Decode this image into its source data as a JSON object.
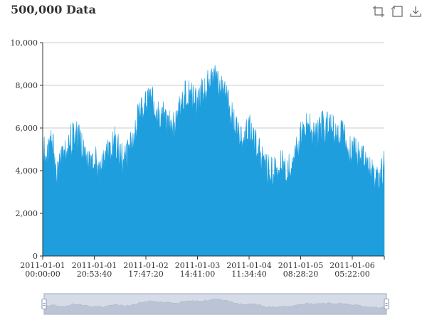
{
  "chart_data": {
    "type": "area",
    "title": "500,000 Data",
    "series": [
      {
        "values": [
          5800,
          5400,
          6100,
          4700,
          5200,
          5600,
          6300,
          6500,
          5900,
          5300,
          4800,
          5200,
          4700,
          5300,
          5800,
          6100,
          5600,
          5100,
          5900,
          6500,
          7300,
          7700,
          8200,
          7900,
          7500,
          7700,
          7100,
          6700,
          7400,
          8000,
          8400,
          8300,
          7900,
          8400,
          8700,
          8900,
          9100,
          8700,
          8300,
          7600,
          6900,
          6200,
          6400,
          6900,
          6100,
          5700,
          5000,
          4800,
          4600,
          4900,
          5200,
          4800,
          5300,
          6000,
          6500,
          6800,
          6600,
          6400,
          6800,
          6900,
          6700,
          6600,
          6400,
          6300,
          5800,
          5700,
          5300,
          5200,
          4800,
          4400,
          4600,
          5100
        ]
      }
    ],
    "y_axis": {
      "min": 0,
      "max": 10000,
      "ticks": [
        "0",
        "2,000",
        "4,000",
        "6,000",
        "8,000",
        "10,000"
      ]
    },
    "x_axis": {
      "ticks": [
        {
          "line1": "2011-01-01",
          "line2": "00:00:00"
        },
        {
          "line1": "2011-01-01",
          "line2": "20:53:40"
        },
        {
          "line1": "2011-01-02",
          "line2": "17:47:20"
        },
        {
          "line1": "2011-01-03",
          "line2": "14:41:00"
        },
        {
          "line1": "2011-01-04",
          "line2": "11:34:40"
        },
        {
          "line1": "2011-01-05",
          "line2": "08:28:20"
        },
        {
          "line1": "2011-01-06",
          "line2": "05:22:00"
        }
      ]
    },
    "grid": true,
    "color": "#1f9ede"
  },
  "colors": {
    "series": "#1f9ede",
    "grid": "#cccccc",
    "slider_fill": "#d5dce8",
    "slider_border": "#9aa8c2"
  },
  "toolbox": {
    "icons": [
      "zoom-area-icon",
      "zoom-reset-icon",
      "download-icon"
    ]
  }
}
